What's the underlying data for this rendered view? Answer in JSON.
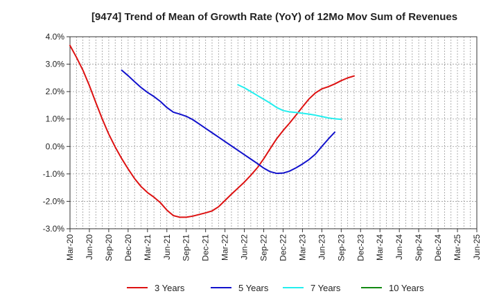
{
  "chart_data": {
    "type": "line",
    "title": "[9474]  Trend of Mean of Growth Rate (YoY) of 12Mo Mov Sum of Revenues",
    "xlabel": "",
    "ylabel": "",
    "ylim": [
      -3.0,
      4.0
    ],
    "y_ticks": [
      4.0,
      3.0,
      2.0,
      1.0,
      0.0,
      -1.0,
      -2.0,
      -3.0
    ],
    "y_tick_labels": [
      "4.0%",
      "3.0%",
      "2.0%",
      "1.0%",
      "0.0%",
      "-1.0%",
      "-2.0%",
      "-3.0%"
    ],
    "x_tick_labels": [
      "Mar-20",
      "Jun-20",
      "Sep-20",
      "Dec-20",
      "Mar-21",
      "Jun-21",
      "Sep-21",
      "Dec-21",
      "Mar-22",
      "Jun-22",
      "Sep-22",
      "Dec-22",
      "Mar-23",
      "Jun-23",
      "Sep-23",
      "Dec-23",
      "Mar-24",
      "Jun-24",
      "Sep-24",
      "Dec-24",
      "Mar-25",
      "Jun-25"
    ],
    "grid": true,
    "legend_position": "bottom",
    "series": [
      {
        "name": "3 Years",
        "color": "#dd1111",
        "start_index": 0,
        "values": [
          3.68,
          3.25,
          2.78,
          2.22,
          1.6,
          1.0,
          0.45,
          -0.02,
          -0.44,
          -0.82,
          -1.17,
          -1.46,
          -1.68,
          -1.85,
          -2.05,
          -2.32,
          -2.52,
          -2.58,
          -2.58,
          -2.54,
          -2.48,
          -2.42,
          -2.35,
          -2.2,
          -1.97,
          -1.74,
          -1.52,
          -1.3,
          -1.05,
          -0.78,
          -0.45,
          -0.08,
          0.28,
          0.58,
          0.85,
          1.14,
          1.44,
          1.73,
          1.95,
          2.1,
          2.18,
          2.28,
          2.4,
          2.5,
          2.57
        ]
      },
      {
        "name": "5 Years",
        "color": "#1111cc",
        "start_index": 8,
        "values": [
          2.78,
          2.58,
          2.36,
          2.15,
          1.97,
          1.82,
          1.64,
          1.42,
          1.25,
          1.18,
          1.1,
          0.98,
          0.82,
          0.66,
          0.5,
          0.34,
          0.18,
          0.02,
          -0.14,
          -0.3,
          -0.46,
          -0.62,
          -0.79,
          -0.92,
          -0.98,
          -0.97,
          -0.9,
          -0.78,
          -0.64,
          -0.48,
          -0.28,
          0.0,
          0.27,
          0.52
        ]
      },
      {
        "name": "7 Years",
        "color": "#22eeee",
        "start_index": 26,
        "values": [
          2.25,
          2.14,
          2.0,
          1.86,
          1.72,
          1.58,
          1.42,
          1.31,
          1.26,
          1.24,
          1.21,
          1.18,
          1.14,
          1.09,
          1.04,
          1.01,
          0.99
        ]
      },
      {
        "name": "10 Years",
        "color": "#118811",
        "start_index": 0,
        "values": []
      }
    ]
  }
}
